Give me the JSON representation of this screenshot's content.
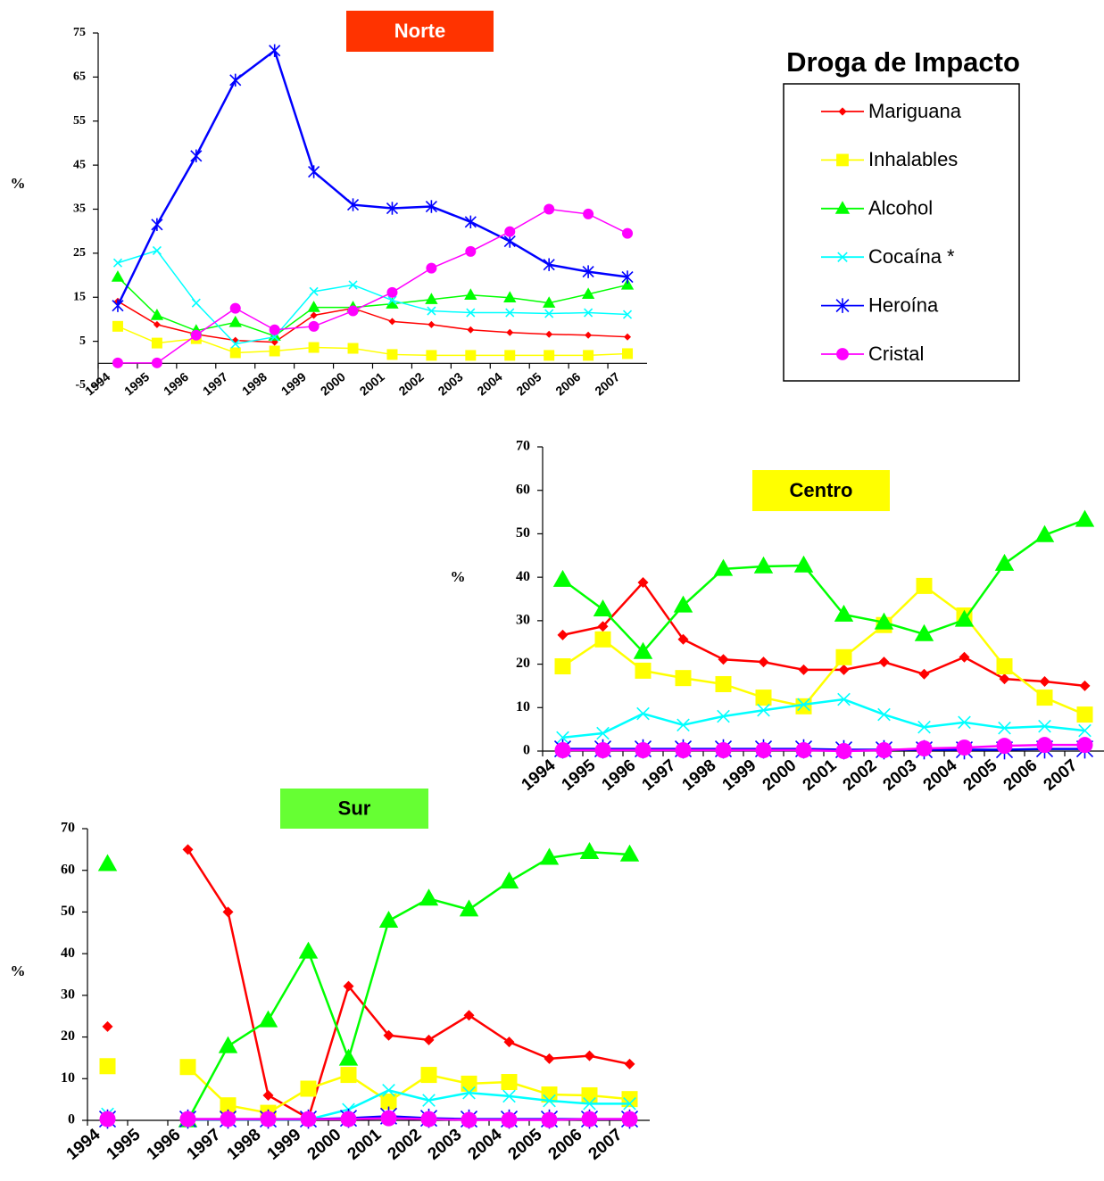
{
  "chart_data": [
    {
      "type": "line",
      "title": "Norte",
      "title_background": "#ff3300",
      "title_color": "#ffffff",
      "ylabel": "%",
      "legend_title": "Droga de Impacto",
      "legend_position": "upper right",
      "categories": [
        "1994",
        "1995",
        "1996",
        "1997",
        "1998",
        "1999",
        "2000",
        "2001",
        "2002",
        "2003",
        "2004",
        "2005",
        "2006",
        "2007"
      ],
      "ylim": [
        -5,
        75
      ],
      "yticks": [
        -5,
        5,
        15,
        25,
        35,
        45,
        55,
        65,
        75
      ],
      "series": [
        {
          "name": "Mariguana",
          "color": "#ff0000",
          "marker": "diamond",
          "values": [
            14.1,
            8.8,
            6.6,
            5.2,
            4.8,
            10.9,
            12.5,
            9.5,
            8.8,
            7.6,
            7.0,
            6.6,
            6.4,
            6.0
          ]
        },
        {
          "name": "Inhalables",
          "color": "#ffff00",
          "marker": "square",
          "values": [
            8.4,
            4.6,
            5.6,
            2.4,
            2.8,
            3.6,
            3.4,
            2.0,
            1.8,
            1.8,
            1.8,
            1.8,
            1.8,
            2.2
          ]
        },
        {
          "name": "Alcohol",
          "color": "#00ff00",
          "marker": "triangle",
          "values": [
            19.6,
            10.9,
            7.4,
            9.3,
            6.2,
            12.7,
            12.7,
            13.5,
            14.5,
            15.5,
            14.9,
            13.7,
            15.7,
            17.8
          ]
        },
        {
          "name": "Cocaína *",
          "color": "#00ffff",
          "marker": "x",
          "values": [
            22.8,
            25.6,
            13.7,
            4.4,
            6.0,
            16.3,
            17.8,
            14.3,
            11.9,
            11.5,
            11.5,
            11.3,
            11.5,
            11.1
          ]
        },
        {
          "name": "Heroína",
          "color": "#0000ff",
          "marker": "star",
          "values": [
            13.1,
            31.5,
            47.1,
            64.3,
            71.0,
            43.5,
            36.0,
            35.2,
            35.6,
            32.1,
            27.7,
            22.4,
            20.8,
            19.6
          ]
        },
        {
          "name": "Cristal",
          "color": "#ff00ff",
          "marker": "circle",
          "values": [
            0.1,
            0.1,
            6.4,
            12.5,
            7.6,
            8.4,
            11.9,
            16.1,
            21.6,
            25.4,
            29.9,
            35.0,
            33.9,
            29.5
          ]
        }
      ]
    },
    {
      "type": "line",
      "title": "Centro",
      "title_background": "#ffff00",
      "title_color": "#000000",
      "ylabel": "%",
      "categories": [
        "1994",
        "1995",
        "1996",
        "1997",
        "1998",
        "1999",
        "2000",
        "2001",
        "2002",
        "2003",
        "2004",
        "2005",
        "2006",
        "2007"
      ],
      "ylim": [
        0,
        70
      ],
      "yticks": [
        0,
        10,
        20,
        30,
        40,
        50,
        60,
        70
      ],
      "series": [
        {
          "color": "#ff0000",
          "marker": "diamond",
          "values": [
            26.7,
            28.7,
            38.8,
            25.7,
            21.1,
            20.5,
            18.7,
            18.7,
            20.5,
            17.7,
            21.6,
            16.6,
            16.0,
            15.0
          ]
        },
        {
          "color": "#ffff00",
          "marker": "square",
          "values": [
            19.5,
            25.7,
            18.5,
            16.8,
            15.4,
            12.3,
            10.3,
            21.6,
            29.0,
            38.0,
            31.2,
            19.5,
            12.3,
            8.4
          ]
        },
        {
          "color": "#00ff00",
          "marker": "triangle",
          "values": [
            39.4,
            32.6,
            22.8,
            33.5,
            41.9,
            42.5,
            42.7,
            31.4,
            29.6,
            26.9,
            30.2,
            43.1,
            49.7,
            53.2
          ]
        },
        {
          "color": "#00ffff",
          "marker": "x",
          "values": [
            3.1,
            4.1,
            8.6,
            6.0,
            8.0,
            9.4,
            10.7,
            11.9,
            8.4,
            5.5,
            6.6,
            5.3,
            5.7,
            4.7
          ]
        },
        {
          "color": "#0000ff",
          "marker": "star",
          "values": [
            0.5,
            0.5,
            0.5,
            0.5,
            0.5,
            0.5,
            0.5,
            0.3,
            0.3,
            0.3,
            0.3,
            0.3,
            0.5,
            0.5
          ]
        },
        {
          "color": "#ff00ff",
          "marker": "circle",
          "values": [
            0.2,
            0.2,
            0.2,
            0.2,
            0.2,
            0.2,
            0.2,
            0,
            0.2,
            0.6,
            0.8,
            1.2,
            1.4,
            1.4
          ]
        }
      ]
    },
    {
      "type": "line",
      "title": "Sur",
      "title_background": "#66ff33",
      "title_color": "#000000",
      "ylabel": "%",
      "categories": [
        "1994",
        "1995",
        "1996",
        "1997",
        "1998",
        "1999",
        "2000",
        "2001",
        "2002",
        "2003",
        "2004",
        "2005",
        "2006",
        "2007"
      ],
      "ylim": [
        0,
        70
      ],
      "yticks": [
        0,
        10,
        20,
        30,
        40,
        50,
        60,
        70
      ],
      "series": [
        {
          "color": "#ff0000",
          "marker": "diamond",
          "values": [
            22.5,
            null,
            65.0,
            50.0,
            6.0,
            0.5,
            32.2,
            20.4,
            19.3,
            25.2,
            18.8,
            14.8,
            15.5,
            13.5
          ]
        },
        {
          "color": "#ffff00",
          "marker": "square",
          "values": [
            13.0,
            null,
            12.8,
            3.6,
            1.8,
            7.6,
            10.9,
            4.5,
            10.9,
            8.8,
            9.2,
            6.2,
            6.0,
            5.1
          ]
        },
        {
          "color": "#00ff00",
          "marker": "triangle",
          "values": [
            61.5,
            null,
            0,
            17.8,
            24.0,
            40.5,
            14.8,
            47.9,
            53.2,
            50.6,
            57.3,
            63.0,
            64.4,
            63.8
          ]
        },
        {
          "color": "#00ffff",
          "marker": "x",
          "values": [
            1.5,
            null,
            0.2,
            0.2,
            0.2,
            0.2,
            2.6,
            7.2,
            4.8,
            6.6,
            5.8,
            4.7,
            4.0,
            4.0
          ]
        },
        {
          "color": "#0000ff",
          "marker": "star",
          "values": [
            0.3,
            null,
            0.3,
            0.3,
            0.3,
            0.3,
            0.5,
            1.0,
            0.5,
            0.3,
            0.3,
            0.3,
            0.3,
            0.3
          ]
        },
        {
          "color": "#ff00ff",
          "marker": "circle",
          "values": [
            0.3,
            null,
            0.3,
            0.3,
            0.3,
            0.3,
            0.3,
            0.5,
            0.3,
            0.1,
            0.1,
            0.1,
            0.3,
            0.3
          ]
        }
      ]
    }
  ]
}
